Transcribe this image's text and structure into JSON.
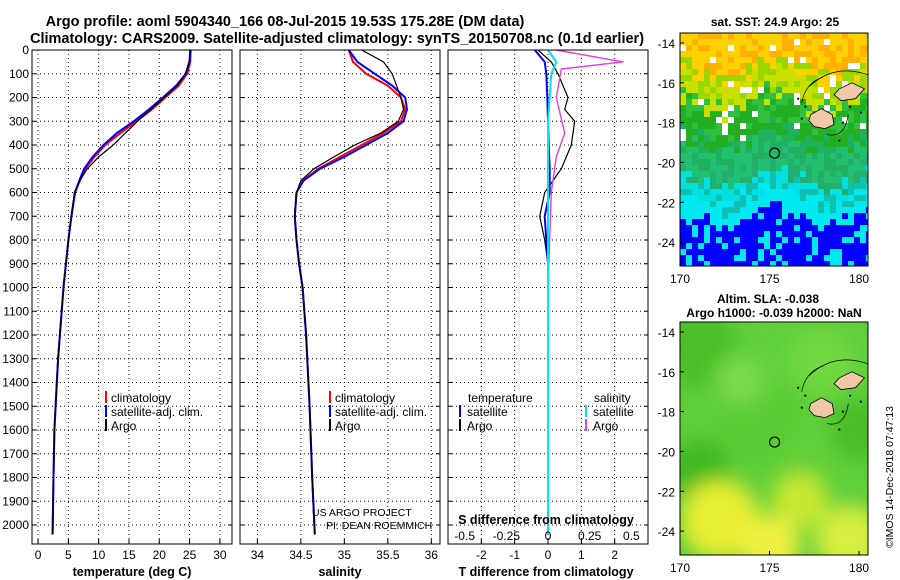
{
  "title": {
    "line1": "Argo profile: aoml 5904340_166 08-Jul-2015 19.53S 175.28E (DM data)",
    "line2": "Climatology: CARS2009. Satellite-adjusted climatology: synTS_20150708.nc (0.1d earlier)"
  },
  "colors": {
    "climatology": "#ff0000",
    "satellite": "#0000ff",
    "argo": "#000000",
    "sat_salinity": "#00e5ee",
    "argo_salinity": "#e040e0"
  },
  "stamps": {
    "project": "US ARGO PROJECT",
    "pi": "PI: DEAN ROEMMICH",
    "imos": "©IMOS 14-Dec-2018 07:47:13"
  },
  "chart_data": [
    {
      "type": "line",
      "title": "Temperature profile",
      "xlabel": "temperature (deg C)",
      "ylabel": "Depth (m)",
      "xlim": [
        -1,
        32
      ],
      "ylim": [
        2080,
        0
      ],
      "xticks": [
        0,
        5,
        10,
        15,
        20,
        25,
        30
      ],
      "yticks": [
        0,
        100,
        200,
        300,
        400,
        500,
        600,
        700,
        800,
        900,
        1000,
        1100,
        1200,
        1300,
        1400,
        1500,
        1600,
        1700,
        1800,
        1900,
        2000
      ],
      "legend": [
        "climatology",
        "satellite-adj. clim.",
        "Argo"
      ],
      "series": [
        {
          "name": "climatology",
          "x": [
            25.2,
            25.1,
            24.6,
            23.2,
            21.0,
            18.8,
            16.2,
            13.6,
            11.1,
            9.3,
            7.8,
            6.9,
            6.1,
            5.5,
            5.0,
            4.6,
            4.2,
            3.9,
            3.6,
            3.3,
            3.1,
            2.9,
            2.7,
            2.55,
            2.4
          ],
          "y": [
            0,
            50,
            100,
            150,
            200,
            250,
            300,
            350,
            400,
            450,
            500,
            550,
            600,
            700,
            800,
            900,
            1000,
            1100,
            1200,
            1300,
            1400,
            1500,
            1600,
            1800,
            2040
          ]
        },
        {
          "name": "satellite-adj. clim.",
          "x": [
            25.1,
            25.0,
            24.4,
            22.8,
            20.6,
            18.3,
            15.8,
            13.0,
            10.8,
            9.0,
            7.6,
            6.8,
            6.1,
            5.5,
            5.0,
            4.6,
            4.2,
            3.9,
            3.6,
            3.3,
            3.1,
            2.9,
            2.7,
            2.55,
            2.4
          ],
          "y": [
            0,
            50,
            100,
            150,
            200,
            250,
            300,
            350,
            400,
            450,
            500,
            550,
            600,
            700,
            800,
            900,
            1000,
            1100,
            1200,
            1300,
            1400,
            1500,
            1600,
            1800,
            2040
          ]
        },
        {
          "name": "Argo",
          "x": [
            25.1,
            24.9,
            24.3,
            23.0,
            20.8,
            18.6,
            16.4,
            14.4,
            12.4,
            10.0,
            8.1,
            6.9,
            6.0,
            5.5,
            5.0,
            4.6,
            4.2,
            3.9,
            3.6,
            3.3,
            3.1,
            2.9,
            2.7,
            2.55,
            2.4
          ],
          "y": [
            0,
            50,
            100,
            150,
            200,
            250,
            300,
            350,
            400,
            450,
            500,
            550,
            600,
            700,
            800,
            900,
            1000,
            1100,
            1200,
            1300,
            1400,
            1500,
            1600,
            1800,
            2040
          ]
        }
      ]
    },
    {
      "type": "line",
      "title": "Salinity profile",
      "xlabel": "salinity",
      "ylabel": "Depth (m)",
      "xlim": [
        33.8,
        36.1
      ],
      "ylim": [
        2080,
        0
      ],
      "xticks": [
        34,
        34.5,
        35,
        35.5,
        36
      ],
      "legend": [
        "climatology",
        "satellite-adj. clim.",
        "Argo"
      ],
      "series": [
        {
          "name": "climatology",
          "x": [
            35.05,
            35.1,
            35.25,
            35.5,
            35.65,
            35.7,
            35.65,
            35.45,
            35.2,
            34.95,
            34.7,
            34.52,
            34.45,
            34.43,
            34.45,
            34.48,
            34.52,
            34.56,
            34.6,
            34.63,
            34.66
          ],
          "y": [
            0,
            50,
            100,
            150,
            200,
            250,
            300,
            350,
            400,
            450,
            500,
            550,
            600,
            700,
            800,
            900,
            1000,
            1200,
            1500,
            1800,
            2040
          ]
        },
        {
          "name": "satellite-adj. clim.",
          "x": [
            35.05,
            35.15,
            35.35,
            35.55,
            35.7,
            35.72,
            35.68,
            35.5,
            35.25,
            35.0,
            34.72,
            34.53,
            34.45,
            34.43,
            34.45,
            34.48,
            34.52,
            34.56,
            34.6,
            34.63,
            34.66
          ],
          "y": [
            0,
            50,
            100,
            150,
            200,
            250,
            300,
            350,
            400,
            450,
            500,
            550,
            600,
            700,
            800,
            900,
            1000,
            1200,
            1500,
            1800,
            2040
          ]
        },
        {
          "name": "Argo",
          "x": [
            35.2,
            35.45,
            35.55,
            35.6,
            35.65,
            35.68,
            35.62,
            35.42,
            35.12,
            34.88,
            34.65,
            34.5,
            34.45,
            34.43,
            34.45,
            34.48,
            34.52,
            34.56,
            34.6,
            34.63,
            34.66
          ],
          "y": [
            0,
            50,
            100,
            150,
            200,
            250,
            300,
            350,
            400,
            450,
            500,
            550,
            600,
            700,
            800,
            900,
            1000,
            1200,
            1500,
            1800,
            2040
          ]
        }
      ]
    },
    {
      "type": "line",
      "title": "Differences from climatology",
      "xlabel": "T difference from climatology",
      "xlabel2": "S difference from climatology",
      "xlim": [
        -3,
        3
      ],
      "s_xlim": [
        -0.6,
        0.6
      ],
      "ylim": [
        2080,
        0
      ],
      "xticks": [
        -2,
        -1,
        0,
        1,
        2
      ],
      "s_xticks": [
        -0.5,
        -0.25,
        0,
        0.25,
        0.5
      ],
      "s_xtick_labels": [
        "-0.5",
        "-0.25",
        "0",
        "0.25",
        "0.5"
      ],
      "legend_t": {
        "heading": "temperature",
        "items": [
          "satellite",
          "Argo"
        ]
      },
      "legend_s": {
        "heading": "salinity",
        "items": [
          "satellite",
          "Argo"
        ]
      },
      "series": [
        {
          "name": "T satellite",
          "x": [
            -0.4,
            -0.1,
            -0.05,
            -0.02,
            0.0,
            0.02,
            0.05,
            0.05,
            -0.1,
            -0.05,
            0.0,
            0.0,
            0.0,
            0.0
          ],
          "y": [
            0,
            50,
            100,
            200,
            300,
            400,
            500,
            600,
            700,
            800,
            900,
            1000,
            1500,
            2040
          ]
        },
        {
          "name": "T Argo",
          "x": [
            -0.3,
            0.1,
            0.3,
            0.6,
            0.5,
            0.8,
            0.7,
            0.4,
            -0.1,
            -0.25,
            -0.1,
            0.0,
            0.0,
            0.0,
            0.0
          ],
          "y": [
            0,
            50,
            100,
            200,
            250,
            300,
            400,
            500,
            600,
            700,
            800,
            900,
            1000,
            1500,
            2040
          ]
        },
        {
          "name": "S satellite",
          "x": [
            0.0,
            0.05,
            0.02,
            0.0,
            0.0,
            0.0,
            0.0
          ],
          "y": [
            0,
            50,
            100,
            300,
            600,
            1000,
            2040
          ]
        },
        {
          "name": "S Argo",
          "x": [
            0.05,
            0.45,
            0.08,
            0.05,
            0.1,
            0.05,
            0.02,
            0.0,
            0.0
          ],
          "y": [
            0,
            50,
            80,
            200,
            350,
            450,
            600,
            1000,
            2040
          ]
        }
      ]
    },
    {
      "type": "heatmap",
      "title": "sat. SST: 24.9 Argo: 25",
      "xlim": [
        170,
        180.5
      ],
      "ylim": [
        -25.2,
        -13.5
      ],
      "xticks": [
        170,
        175,
        180
      ],
      "yticks": [
        -14,
        -16,
        -18,
        -20,
        -22,
        -24
      ],
      "argo_position": {
        "lon": 175.28,
        "lat": -19.53
      }
    },
    {
      "type": "heatmap",
      "title": "Altim. SLA: -0.038",
      "subtitle": "Argo h1000: -0.039 h2000: NaN",
      "xlim": [
        170,
        180.5
      ],
      "ylim": [
        -25.2,
        -13.5
      ],
      "xticks": [
        170,
        175,
        180
      ],
      "yticks": [
        -14,
        -16,
        -18,
        -20,
        -22,
        -24
      ],
      "argo_position": {
        "lon": 175.28,
        "lat": -19.53
      }
    }
  ]
}
